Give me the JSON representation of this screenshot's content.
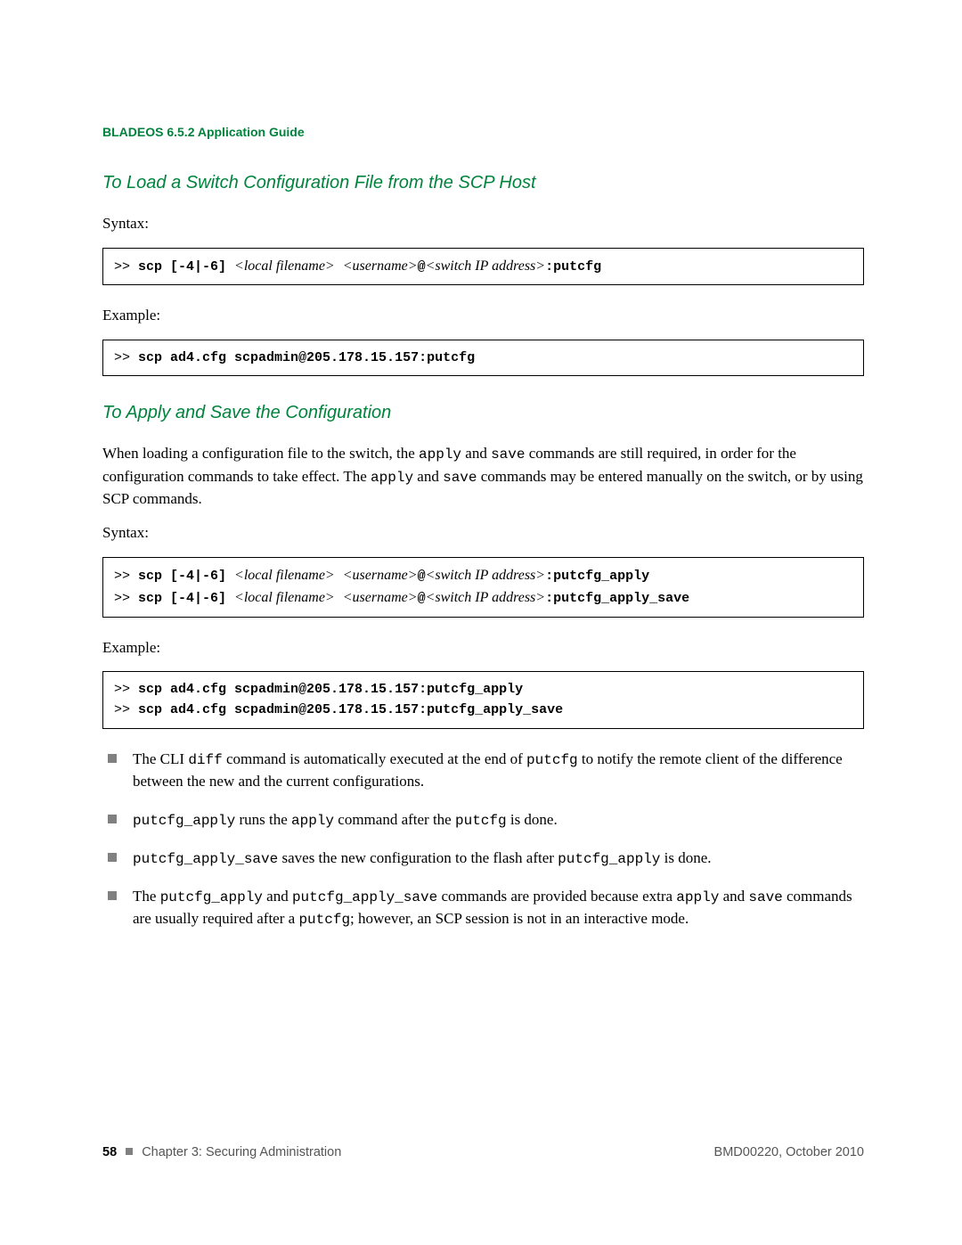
{
  "colors": {
    "accent": "#00833d",
    "text": "#000000",
    "muted": "#555555",
    "bullet": "#808080",
    "border": "#000000",
    "background": "#ffffff"
  },
  "typography": {
    "body_family": "Times New Roman",
    "heading_family": "Arial",
    "code_family": "Courier New",
    "body_size_pt": 12,
    "heading_size_pt": 15,
    "code_size_pt": 11
  },
  "header": {
    "running_title": "BLADEOS 6.5.2 Application Guide"
  },
  "section1": {
    "heading": "To Load a Switch Configuration File from the SCP Host",
    "syntax_label": "Syntax:",
    "syntax_prefix": ">> ",
    "syntax_cmd": "scp",
    "syntax_flags": " [-4|-6] ",
    "syntax_arg1": "<local filename>",
    "syntax_sep1": " ",
    "syntax_arg2": "<username>",
    "syntax_at": "@",
    "syntax_arg3": "<switch IP address>",
    "syntax_suffix": ":putcfg",
    "example_label": "Example:",
    "example_prefix": ">> ",
    "example_cmd": "scp ad4.cfg scpadmin@205.178.15.157:putcfg"
  },
  "section2": {
    "heading": "To Apply and Save the Configuration",
    "para1_a": "When loading a configuration file to the switch, the ",
    "para1_code1": "apply",
    "para1_b": " and ",
    "para1_code2": "save",
    "para1_c": " commands are still required, in order for the configuration commands to take effect. The ",
    "para1_code3": "apply",
    "para1_d": " and ",
    "para1_code4": "save",
    "para1_e": " commands may be entered manually on the switch, or by using SCP commands.",
    "syntax_label": "Syntax:",
    "syntax_line1": {
      "prefix": ">> ",
      "cmd": "scp",
      "flags": " [-4|-6] ",
      "arg1": "<local filename>",
      "sep1": " ",
      "arg2": "<username>",
      "at": "@",
      "arg3": "<switch IP address>",
      "suffix": ":putcfg_apply"
    },
    "syntax_line2": {
      "prefix": ">> ",
      "cmd": "scp",
      "flags": " [-4|-6] ",
      "arg1": "<local filename>",
      "sep1": " ",
      "arg2": "<username>",
      "at": "@",
      "arg3": "<switch IP address>",
      "suffix": ":putcfg_apply_save"
    },
    "example_label": "Example:",
    "example_line1_prefix": ">> ",
    "example_line1_cmd": "scp ad4.cfg scpadmin@205.178.15.157:putcfg_apply",
    "example_line2_prefix": ">> ",
    "example_line2_cmd": "scp ad4.cfg scpadmin@205.178.15.157:putcfg_apply_save",
    "bullets": [
      {
        "a": "The CLI ",
        "c1": "diff",
        "b": " command is automatically executed at the end of ",
        "c2": "putcfg",
        "c": " to notify the remote client of the difference between the new and the current configurations."
      },
      {
        "c1": "putcfg_apply",
        "a": " runs the ",
        "c2": "apply",
        "b": " command after the ",
        "c3": "putcfg",
        "c": " is done."
      },
      {
        "c1": "putcfg_apply_save",
        "a": " saves the new configuration to the flash after ",
        "c2": "putcfg_apply",
        "b": " is done."
      },
      {
        "a": "The ",
        "c1": "putcfg_apply",
        "b": " and ",
        "c2": "putcfg_apply_save",
        "c": " commands are provided because extra ",
        "c3": "apply",
        "d": " and ",
        "c4": "save",
        "e": " commands are usually required after a ",
        "c5": "putcfg",
        "f": "; however, an SCP session is not in an interactive mode."
      }
    ]
  },
  "footer": {
    "page_number": "58",
    "chapter": "Chapter 3: Securing Administration",
    "doc_id": "BMD00220, October 2010"
  }
}
